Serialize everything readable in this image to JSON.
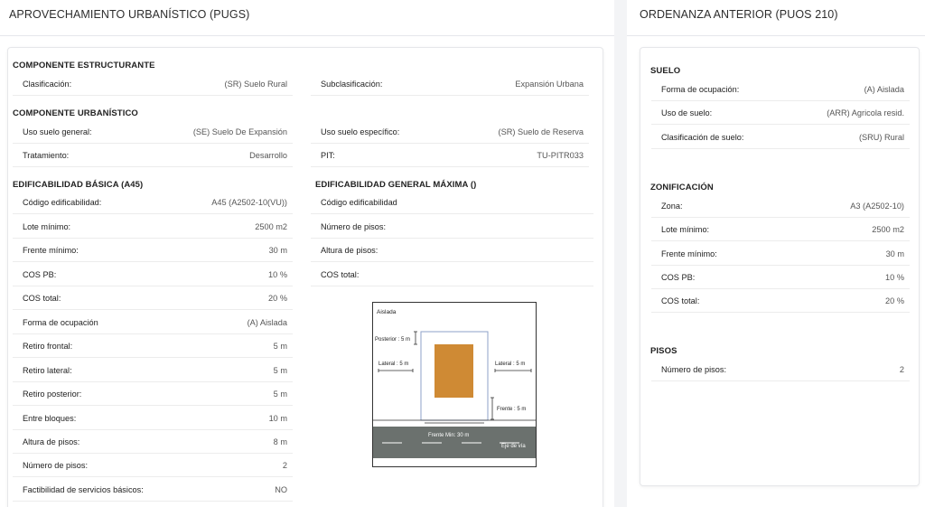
{
  "left_panel": {
    "title": "APROVECHAMIENTO URBANÍSTICO (PUGS)",
    "estructurante": {
      "title": "COMPONENTE ESTRUCTURANTE",
      "rows": [
        {
          "label": "Clasificación:",
          "value": "(SR) Suelo Rural"
        },
        {
          "label": "Subclasificación:",
          "value": "Expansión Urbana"
        }
      ]
    },
    "urbanistico": {
      "title": "COMPONENTE URBANÍSTICO",
      "rows": [
        {
          "label": "Uso suelo general:",
          "value": "(SE) Suelo De Expansión"
        },
        {
          "label": "Uso suelo específico:",
          "value": "(SR) Suelo de Reserva"
        },
        {
          "label": "Tratamiento:",
          "value": "Desarrollo"
        },
        {
          "label": "PIT:",
          "value": "TU-PITR033"
        }
      ]
    },
    "basica": {
      "title": "EDIFICABILIDAD BÁSICA (A45)",
      "rows": [
        {
          "label": "Código edificabilidad:",
          "value": "A45 (A2502-10(VU))"
        },
        {
          "label": "Lote mínimo:",
          "value": "2500 m2"
        },
        {
          "label": "Frente mínimo:",
          "value": "30 m"
        },
        {
          "label": "COS PB:",
          "value": "10 %"
        },
        {
          "label": "COS total:",
          "value": "20 %"
        },
        {
          "label": "Forma de ocupación",
          "value": "(A) Aislada"
        },
        {
          "label": "Retiro frontal:",
          "value": "5 m"
        },
        {
          "label": "Retiro lateral:",
          "value": "5 m"
        },
        {
          "label": "Retiro posterior:",
          "value": "5 m"
        },
        {
          "label": "Entre bloques:",
          "value": "10 m"
        },
        {
          "label": "Altura de pisos:",
          "value": "8 m"
        },
        {
          "label": "Número de pisos:",
          "value": "2"
        },
        {
          "label": "Factibilidad de servicios básicos:",
          "value": "NO"
        }
      ]
    },
    "maxima": {
      "title": "EDIFICABILIDAD GENERAL MÁXIMA ()",
      "rows": [
        {
          "label": "Código edificabilidad",
          "value": ""
        },
        {
          "label": "Número de pisos:",
          "value": ""
        },
        {
          "label": "Altura de pisos:",
          "value": ""
        },
        {
          "label": "COS total:",
          "value": ""
        }
      ]
    },
    "diagram": {
      "title": "Aislada",
      "posterior": "Posterior : 5 m",
      "lateral_left": "Lateral : 5 m",
      "lateral_right": "Lateral : 5 m",
      "frente": "Frente : 5 m",
      "frente_min": "Frente Min: 30 m",
      "eje_via": "Eje de vía",
      "building_color": "#cf8a34",
      "road_color": "#6b716e"
    }
  },
  "right_panel": {
    "title": "ORDENANZA ANTERIOR (PUOS 210)",
    "suelo": {
      "title": "SUELO",
      "rows": [
        {
          "label": "Forma de ocupación:",
          "value": "(A) Aislada"
        },
        {
          "label": "Uso de suelo:",
          "value": "(ARR) Agricola resid."
        },
        {
          "label": "Clasificación de suelo:",
          "value": "(SRU) Rural"
        }
      ]
    },
    "zonificacion": {
      "title": "ZONIFICACIÓN",
      "rows": [
        {
          "label": "Zona:",
          "value": "A3 (A2502-10)"
        },
        {
          "label": "Lote mínimo:",
          "value": "2500 m2"
        },
        {
          "label": "Frente mínimo:",
          "value": "30 m"
        },
        {
          "label": "COS PB:",
          "value": "10 %"
        },
        {
          "label": "COS total:",
          "value": "20 %"
        }
      ]
    },
    "pisos": {
      "title": "PISOS",
      "rows": [
        {
          "label": "Número de pisos:",
          "value": "2"
        }
      ]
    }
  }
}
